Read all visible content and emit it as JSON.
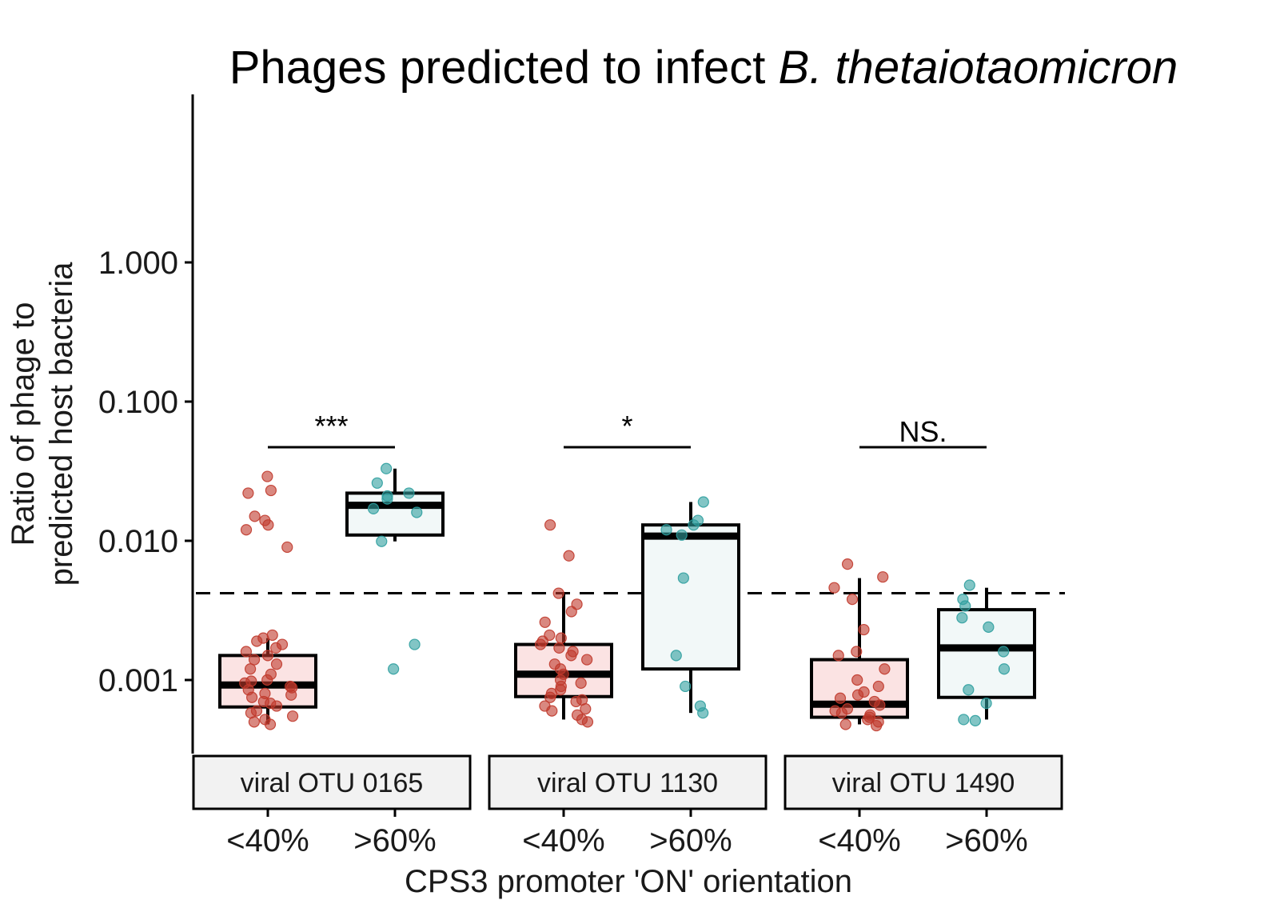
{
  "chart_data": {
    "type": "boxplot",
    "title_prefix": "Phages predicted to infect ",
    "title_italic": "B. thetaiotaomicron",
    "ylabel_line1": "Ratio of phage to",
    "ylabel_line2": "predicted host bacteria",
    "xlabel": "CPS3 promoter 'ON' orientation",
    "yscale": "log10",
    "ylim": [
      0.00035,
      20
    ],
    "yticks": [
      {
        "value": 1,
        "label": "1.000"
      },
      {
        "value": 0.1,
        "label": "0.100"
      },
      {
        "value": 0.01,
        "label": "0.010"
      },
      {
        "value": 0.001,
        "label": "0.001"
      }
    ],
    "threshold": 0.0042,
    "categories": [
      "<40%",
      ">60%"
    ],
    "colors": {
      "low_point": "#c0392b",
      "low_fill": "#fbe3e3",
      "high_point": "#2e9e9e",
      "high_fill": "#f2f8f8"
    },
    "panels": [
      {
        "label": "viral OTU 0165",
        "significance": "***",
        "groups": [
          {
            "category": "<40%",
            "min": 0.00048,
            "q1": 0.00064,
            "median": 0.00092,
            "q3": 0.0015,
            "max": 0.002,
            "points": [
              0.029,
              0.023,
              0.022,
              0.015,
              0.014,
              0.013,
              0.012,
              0.009,
              0.0021,
              0.002,
              0.0019,
              0.0018,
              0.0017,
              0.0016,
              0.0015,
              0.0014,
              0.0013,
              0.0012,
              0.0011,
              0.001,
              0.00098,
              0.00095,
              0.0009,
              0.00088,
              0.00085,
              0.0008,
              0.00078,
              0.00075,
              0.0007,
              0.00068,
              0.00065,
              0.0006,
              0.00058,
              0.00055,
              0.00052,
              0.0005,
              0.00048
            ]
          },
          {
            "category": ">60%",
            "min": 0.0099,
            "q1": 0.011,
            "median": 0.018,
            "q3": 0.022,
            "max": 0.033,
            "points": [
              0.033,
              0.026,
              0.022,
              0.021,
              0.02,
              0.017,
              0.016,
              0.0099,
              0.0018,
              0.0012
            ]
          }
        ]
      },
      {
        "label": "viral OTU 1130",
        "significance": "*",
        "groups": [
          {
            "category": "<40%",
            "min": 0.00052,
            "q1": 0.00076,
            "median": 0.0011,
            "q3": 0.0018,
            "max": 0.0042,
            "points": [
              0.013,
              0.0078,
              0.0042,
              0.0035,
              0.0031,
              0.0026,
              0.0021,
              0.002,
              0.0019,
              0.0018,
              0.0017,
              0.0016,
              0.0015,
              0.0014,
              0.0013,
              0.0012,
              0.0011,
              0.001,
              0.00095,
              0.0009,
              0.00085,
              0.0008,
              0.00075,
              0.0007,
              0.00065,
              0.0006,
              0.00056,
              0.00052,
              0.0005,
              0.00062,
              0.00072
            ]
          },
          {
            "category": ">60%",
            "min": 0.00058,
            "q1": 0.0012,
            "median": 0.0108,
            "q3": 0.013,
            "max": 0.019,
            "points": [
              0.019,
              0.014,
              0.013,
              0.012,
              0.011,
              0.0054,
              0.0015,
              0.0009,
              0.00065,
              0.00058
            ]
          }
        ]
      },
      {
        "label": "viral OTU 1490",
        "significance": "NS.",
        "groups": [
          {
            "category": "<40%",
            "min": 0.00048,
            "q1": 0.00054,
            "median": 0.00067,
            "q3": 0.0014,
            "max": 0.0054,
            "points": [
              0.0068,
              0.0055,
              0.0046,
              0.0038,
              0.0023,
              0.0016,
              0.0015,
              0.0012,
              0.001,
              0.0009,
              0.00082,
              0.00078,
              0.00074,
              0.0007,
              0.00066,
              0.00062,
              0.0006,
              0.00058,
              0.00056,
              0.00054,
              0.00052,
              0.0005,
              0.00048,
              0.00047
            ]
          },
          {
            "category": ">60%",
            "min": 0.00052,
            "q1": 0.00075,
            "median": 0.0017,
            "q3": 0.0032,
            "max": 0.0046,
            "points": [
              0.0048,
              0.0038,
              0.0034,
              0.0028,
              0.0024,
              0.0016,
              0.0012,
              0.00085,
              0.00068,
              0.00052,
              0.00051
            ]
          }
        ]
      }
    ]
  }
}
